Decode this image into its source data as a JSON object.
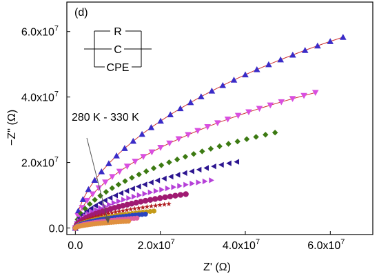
{
  "chart_data": {
    "type": "scatter",
    "panel_label": "(d)",
    "xlabel": "Z' (Ω)",
    "ylabel": "−Z'' (Ω)",
    "xlim": [
      -2000000.0,
      70000000.0
    ],
    "ylim": [
      -2000000.0,
      69000000.0
    ],
    "x_ticks": [
      {
        "value": 0,
        "label": "0.0"
      },
      {
        "value": 20000000.0,
        "label": "2.0x10",
        "exp": "7"
      },
      {
        "value": 40000000.0,
        "label": "4.0x10",
        "exp": "7"
      },
      {
        "value": 60000000.0,
        "label": "6.0x10",
        "exp": "7"
      }
    ],
    "y_ticks": [
      {
        "value": 0,
        "label": "0.0"
      },
      {
        "value": 20000000.0,
        "label": "2.0x10",
        "exp": "7"
      },
      {
        "value": 40000000.0,
        "label": "4.0x10",
        "exp": "7"
      },
      {
        "value": 60000000.0,
        "label": "6.0x10",
        "exp": "7"
      }
    ],
    "annotation": "280 K - 330 K",
    "circuit": {
      "labels": [
        "R",
        "C",
        "CPE"
      ]
    },
    "grid": false,
    "series": [
      {
        "marker": "triangle-up",
        "color": "#3a2cc8",
        "fit": true,
        "end": [
          63000000.0,
          62000000.0
        ]
      },
      {
        "marker": "triangle-down",
        "color": "#d94fe0",
        "fit": true,
        "end": [
          56500000.0,
          44000000.0
        ]
      },
      {
        "marker": "diamond",
        "color": "#3c7a12",
        "end": [
          47000000.0,
          31000000.0
        ]
      },
      {
        "marker": "triangle-left",
        "color": "#2c1590",
        "end": [
          38000000.0,
          21500000.0
        ]
      },
      {
        "marker": "triangle-right",
        "color": "#b540d8",
        "end": [
          32000000.0,
          15500000.0
        ]
      },
      {
        "marker": "circle",
        "color": "#a01a72",
        "end": [
          26000000.0,
          11000000.0
        ]
      },
      {
        "marker": "star",
        "color": "#b01c20",
        "end": [
          22000000.0,
          7800000.0
        ]
      },
      {
        "marker": "circle",
        "color": "#c49a18",
        "end": [
          18500000.0,
          5500000.0
        ]
      },
      {
        "marker": "circle",
        "color": "#2a45c0",
        "end": [
          16500000.0,
          4500000.0
        ]
      },
      {
        "marker": "circle",
        "color": "#e060a0",
        "end": [
          14500000.0,
          3200000.0
        ]
      },
      {
        "marker": "circle",
        "color": "#e09040",
        "end": [
          12500000.0,
          2200000.0
        ]
      }
    ]
  }
}
